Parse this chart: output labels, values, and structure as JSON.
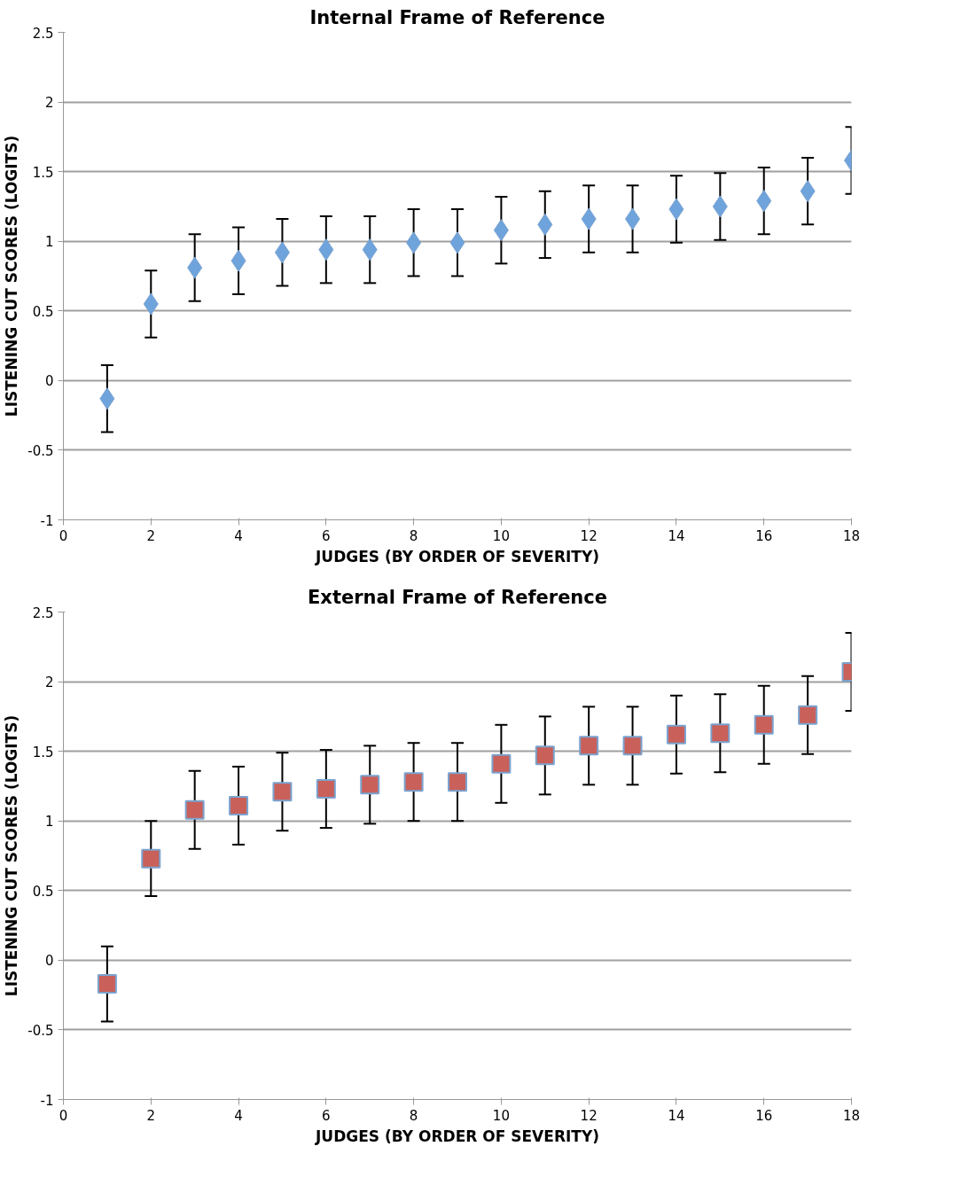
{
  "chart_data": [
    {
      "type": "scatter",
      "title": "Internal Frame of Reference",
      "xlabel": "JUDGES (BY ORDER OF SEVERITY)",
      "ylabel": "LISTENING CUT SCORES (LOGITS)",
      "x": [
        1,
        2,
        3,
        4,
        5,
        6,
        7,
        8,
        9,
        10,
        11,
        12,
        13,
        14,
        15,
        16,
        17,
        18
      ],
      "series": [
        {
          "color": "#6fa3dc",
          "marker": "diamond",
          "values": [
            -0.13,
            0.55,
            0.81,
            0.86,
            0.92,
            0.94,
            0.94,
            0.99,
            0.99,
            1.08,
            1.12,
            1.16,
            1.16,
            1.23,
            1.25,
            1.29,
            1.36,
            1.58
          ],
          "errors": [
            0.24,
            0.24,
            0.24,
            0.24,
            0.24,
            0.24,
            0.24,
            0.24,
            0.24,
            0.24,
            0.24,
            0.24,
            0.24,
            0.24,
            0.24,
            0.24,
            0.24,
            0.24
          ]
        }
      ],
      "xlim": [
        0,
        18
      ],
      "xticks": [
        0,
        2,
        4,
        6,
        8,
        10,
        12,
        14,
        16,
        18
      ],
      "ylim": [
        -1,
        2.5
      ],
      "yticks": [
        -1,
        -0.5,
        0,
        0.5,
        1,
        1.5,
        2,
        2.5
      ],
      "grid": "y"
    },
    {
      "type": "scatter",
      "title": "External Frame of Reference",
      "xlabel": "JUDGES (BY ORDER OF SEVERITY)",
      "ylabel": "LISTENING CUT SCORES (LOGITS)",
      "x": [
        1,
        2,
        3,
        4,
        5,
        6,
        7,
        8,
        9,
        10,
        11,
        12,
        13,
        14,
        15,
        16,
        17,
        18
      ],
      "series": [
        {
          "color": "#c9605a",
          "marker": "square",
          "values": [
            -0.17,
            0.73,
            1.08,
            1.11,
            1.21,
            1.23,
            1.26,
            1.28,
            1.28,
            1.41,
            1.47,
            1.54,
            1.54,
            1.62,
            1.63,
            1.69,
            1.76,
            2.07
          ],
          "errors": [
            0.27,
            0.27,
            0.28,
            0.28,
            0.28,
            0.28,
            0.28,
            0.28,
            0.28,
            0.28,
            0.28,
            0.28,
            0.28,
            0.28,
            0.28,
            0.28,
            0.28,
            0.28
          ]
        }
      ],
      "xlim": [
        0,
        18
      ],
      "xticks": [
        0,
        2,
        4,
        6,
        8,
        10,
        12,
        14,
        16,
        18
      ],
      "ylim": [
        -1,
        2.5
      ],
      "yticks": [
        -1,
        -0.5,
        0,
        0.5,
        1,
        1.5,
        2,
        2.5
      ],
      "grid": "y"
    }
  ]
}
